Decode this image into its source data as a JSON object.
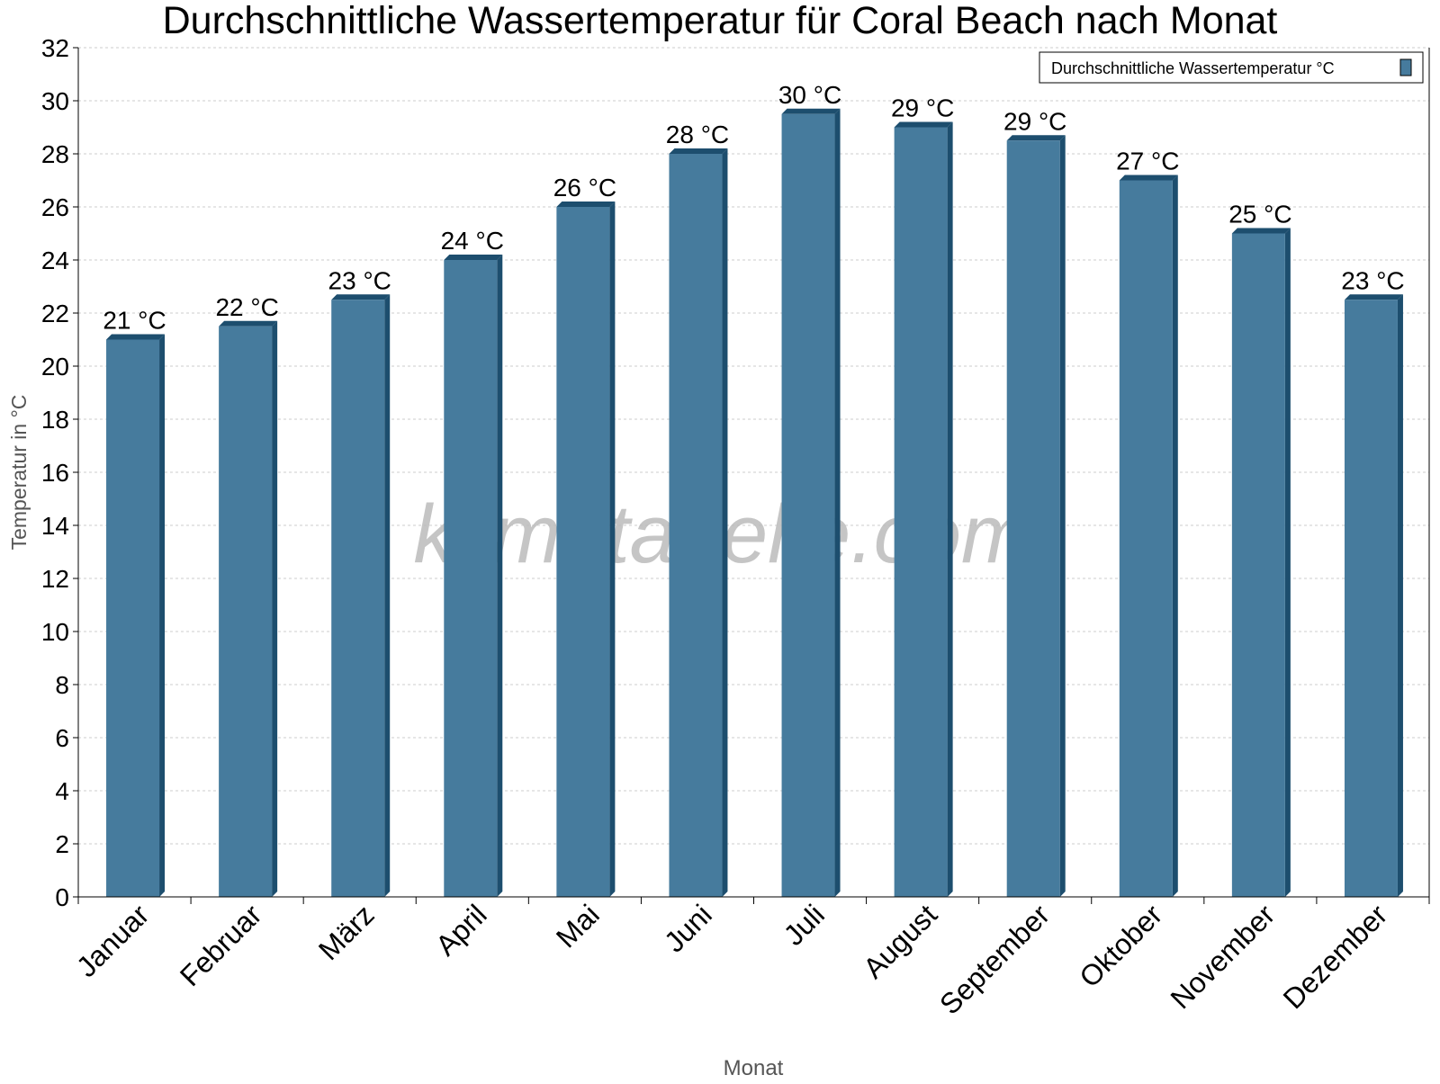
{
  "chart_data": {
    "type": "bar",
    "title": "Durchschnittliche Wassertemperatur für Coral Beach nach Monat",
    "xlabel": "Monat",
    "ylabel": "Temperatur in °C",
    "categories": [
      "Januar",
      "Februar",
      "März",
      "April",
      "Mai",
      "Juni",
      "Juli",
      "August",
      "September",
      "Oktober",
      "November",
      "Dezember"
    ],
    "series": [
      {
        "name": "Durchschnittliche Wassertemperatur °C",
        "values": [
          21,
          21.5,
          22.5,
          24,
          26,
          28,
          29.5,
          29,
          28.5,
          27,
          25,
          22.5
        ],
        "labels": [
          "21 °C",
          "22 °C",
          "23 °C",
          "24 °C",
          "26 °C",
          "28 °C",
          "30 °C",
          "29 °C",
          "29 °C",
          "27 °C",
          "25 °C",
          "23 °C"
        ]
      }
    ],
    "ylim": [
      0,
      32
    ],
    "yticks": [
      0,
      2,
      4,
      6,
      8,
      10,
      12,
      14,
      16,
      18,
      20,
      22,
      24,
      26,
      28,
      30,
      32
    ],
    "grid": true,
    "legend_position": "top-right",
    "colors": {
      "bar": "#467b9d",
      "bar_side": "#1d4e6e",
      "watermark": "#bbbbbb"
    },
    "watermark": "klimatabelle.com"
  }
}
